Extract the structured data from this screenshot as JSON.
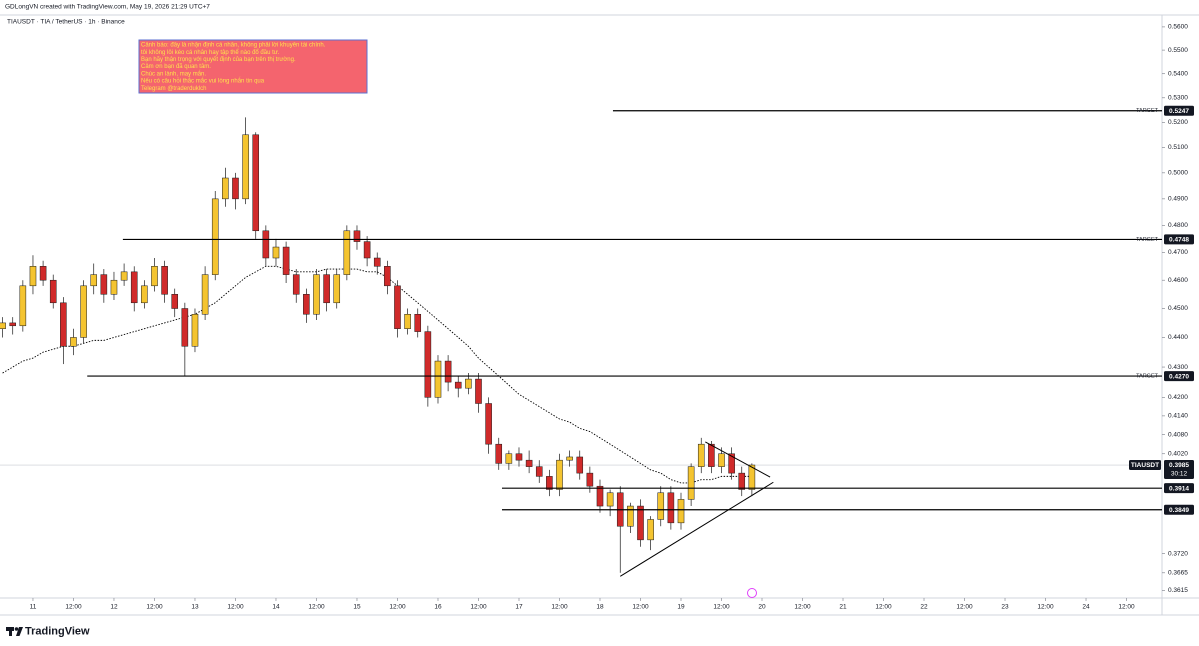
{
  "header": {
    "credit": "GDLongVN created with TradingView.com, May 19, 2026 21:29 UTC+7"
  },
  "footer": {
    "brand": "TradingView"
  },
  "chart_data": {
    "type": "candlestick",
    "title": "TIAUSDT · TIA / TetherUS · 1h · Binance",
    "annotation": [
      "Cảnh báo: đây là nhận định cá nhân, không phải lời khuyên tài chính.",
      "tôi không lôi kéo cá nhân hay tập thể nào đổ đầu tư.",
      "Bạn hãy thận trọng với quyết định của bạn trên thị trường.",
      "Cảm ơn bạn đã quan tâm.",
      "Chúc an lành, may mắn.",
      "Nếu có câu hỏi thắc mắc vui lòng nhắn tin qua",
      "Telegram @traderduklch"
    ],
    "log_scale": true,
    "up_color": "#f4c430",
    "down_color": "#d02a2a",
    "ma_color": "#000000",
    "level_color": "#000000",
    "xlim": [
      10.593,
      24.938
    ],
    "ylim": [
      0.3594,
      0.5652
    ],
    "xticks": [
      {
        "value": 11,
        "label": "11"
      },
      {
        "value": 11.5,
        "label": "12:00"
      },
      {
        "value": 12,
        "label": "12"
      },
      {
        "value": 12.5,
        "label": "12:00"
      },
      {
        "value": 13,
        "label": "13"
      },
      {
        "value": 13.5,
        "label": "12:00"
      },
      {
        "value": 14,
        "label": "14"
      },
      {
        "value": 14.5,
        "label": "12:00"
      },
      {
        "value": 15,
        "label": "15"
      },
      {
        "value": 15.5,
        "label": "12:00"
      },
      {
        "value": 16,
        "label": "16"
      },
      {
        "value": 16.5,
        "label": "12:00"
      },
      {
        "value": 17,
        "label": "17"
      },
      {
        "value": 17.5,
        "label": "12:00"
      },
      {
        "value": 18,
        "label": "18"
      },
      {
        "value": 18.5,
        "label": "12:00"
      },
      {
        "value": 19,
        "label": "19"
      },
      {
        "value": 19.5,
        "label": "12:00"
      },
      {
        "value": 20,
        "label": "20"
      },
      {
        "value": 20.5,
        "label": "12:00"
      },
      {
        "value": 21,
        "label": "21"
      },
      {
        "value": 21.5,
        "label": "12:00"
      },
      {
        "value": 22,
        "label": "22"
      },
      {
        "value": 22.5,
        "label": "12:00"
      },
      {
        "value": 23,
        "label": "23"
      },
      {
        "value": 23.5,
        "label": "12:00"
      },
      {
        "value": 24,
        "label": "24"
      },
      {
        "value": 24.5,
        "label": "12:00"
      }
    ],
    "yticks": [
      {
        "value": 0.56,
        "label": "0.5600"
      },
      {
        "value": 0.55,
        "label": "0.5500"
      },
      {
        "value": 0.54,
        "label": "0.5400"
      },
      {
        "value": 0.53,
        "label": "0.5300"
      },
      {
        "value": 0.52,
        "label": "0.5200"
      },
      {
        "value": 0.51,
        "label": "0.5100"
      },
      {
        "value": 0.5,
        "label": "0.5000"
      },
      {
        "value": 0.49,
        "label": "0.4900"
      },
      {
        "value": 0.48,
        "label": "0.4800"
      },
      {
        "value": 0.47,
        "label": "0.4700"
      },
      {
        "value": 0.46,
        "label": "0.4600"
      },
      {
        "value": 0.45,
        "label": "0.4500"
      },
      {
        "value": 0.44,
        "label": "0.4400"
      },
      {
        "value": 0.43,
        "label": "0.4300"
      },
      {
        "value": 0.42,
        "label": "0.4200"
      },
      {
        "value": 0.414,
        "label": "0.4140"
      },
      {
        "value": 0.408,
        "label": "0.4080"
      },
      {
        "value": 0.402,
        "label": "0.4020"
      },
      {
        "value": 0.372,
        "label": "0.3720"
      },
      {
        "value": 0.3665,
        "label": "0.3665"
      },
      {
        "value": 0.3615,
        "label": "0.3615"
      }
    ],
    "candles": {
      "x": [
        10.625,
        10.75,
        10.875,
        11,
        11.125,
        11.25,
        11.375,
        11.5,
        11.625,
        11.75,
        11.875,
        12,
        12.125,
        12.25,
        12.375,
        12.5,
        12.625,
        12.75,
        12.875,
        13,
        13.125,
        13.25,
        13.375,
        13.5,
        13.625,
        13.75,
        13.875,
        14,
        14.125,
        14.25,
        14.375,
        14.5,
        14.625,
        14.75,
        14.875,
        15,
        15.125,
        15.25,
        15.375,
        15.5,
        15.625,
        15.75,
        15.875,
        16,
        16.125,
        16.25,
        16.375,
        16.5,
        16.625,
        16.75,
        16.875,
        17,
        17.125,
        17.25,
        17.375,
        17.5,
        17.625,
        17.75,
        17.875,
        18,
        18.125,
        18.25,
        18.375,
        18.5,
        18.625,
        18.75,
        18.875,
        19,
        19.125,
        19.25,
        19.375,
        19.5,
        19.625,
        19.75,
        19.875
      ],
      "open": [
        0.443,
        0.445,
        0.444,
        0.458,
        0.465,
        0.46,
        0.452,
        0.437,
        0.44,
        0.458,
        0.462,
        0.455,
        0.46,
        0.463,
        0.452,
        0.458,
        0.465,
        0.455,
        0.45,
        0.437,
        0.448,
        0.462,
        0.49,
        0.498,
        0.49,
        0.515,
        0.478,
        0.468,
        0.472,
        0.462,
        0.455,
        0.448,
        0.462,
        0.452,
        0.462,
        0.478,
        0.474,
        0.468,
        0.465,
        0.458,
        0.443,
        0.448,
        0.442,
        0.42,
        0.432,
        0.425,
        0.423,
        0.426,
        0.418,
        0.405,
        0.399,
        0.402,
        0.4,
        0.398,
        0.395,
        0.391,
        0.4,
        0.401,
        0.396,
        0.392,
        0.386,
        0.39,
        0.38,
        0.386,
        0.376,
        0.382,
        0.39,
        0.381,
        0.388,
        0.398,
        0.405,
        0.398,
        0.402,
        0.396,
        0.391
      ],
      "high": [
        0.447,
        0.447,
        0.46,
        0.469,
        0.467,
        0.462,
        0.454,
        0.443,
        0.46,
        0.466,
        0.464,
        0.463,
        0.466,
        0.465,
        0.46,
        0.468,
        0.467,
        0.457,
        0.452,
        0.45,
        0.465,
        0.493,
        0.502,
        0.5,
        0.522,
        0.516,
        0.48,
        0.475,
        0.474,
        0.464,
        0.457,
        0.464,
        0.464,
        0.464,
        0.48,
        0.48,
        0.476,
        0.47,
        0.467,
        0.46,
        0.45,
        0.45,
        0.444,
        0.434,
        0.434,
        0.427,
        0.428,
        0.428,
        0.42,
        0.407,
        0.403,
        0.404,
        0.403,
        0.4,
        0.397,
        0.402,
        0.403,
        0.403,
        0.398,
        0.394,
        0.391,
        0.392,
        0.387,
        0.388,
        0.383,
        0.392,
        0.392,
        0.39,
        0.399,
        0.407,
        0.406,
        0.404,
        0.404,
        0.398,
        0.399
      ],
      "low": [
        0.44,
        0.441,
        0.442,
        0.455,
        0.458,
        0.45,
        0.431,
        0.434,
        0.438,
        0.455,
        0.452,
        0.453,
        0.458,
        0.449,
        0.45,
        0.456,
        0.452,
        0.447,
        0.427,
        0.435,
        0.446,
        0.46,
        0.487,
        0.486,
        0.488,
        0.475,
        0.465,
        0.465,
        0.459,
        0.452,
        0.445,
        0.446,
        0.449,
        0.45,
        0.46,
        0.471,
        0.465,
        0.462,
        0.455,
        0.44,
        0.441,
        0.44,
        0.417,
        0.418,
        0.422,
        0.42,
        0.421,
        0.415,
        0.402,
        0.397,
        0.397,
        0.398,
        0.396,
        0.393,
        0.389,
        0.389,
        0.398,
        0.394,
        0.39,
        0.384,
        0.383,
        0.3665,
        0.378,
        0.374,
        0.373,
        0.38,
        0.379,
        0.379,
        0.386,
        0.396,
        0.396,
        0.396,
        0.394,
        0.389,
        0.389
      ],
      "close": [
        0.445,
        0.444,
        0.458,
        0.465,
        0.46,
        0.452,
        0.437,
        0.44,
        0.458,
        0.462,
        0.455,
        0.46,
        0.463,
        0.452,
        0.458,
        0.465,
        0.455,
        0.45,
        0.437,
        0.448,
        0.462,
        0.49,
        0.498,
        0.49,
        0.515,
        0.478,
        0.468,
        0.472,
        0.462,
        0.455,
        0.448,
        0.462,
        0.452,
        0.462,
        0.478,
        0.474,
        0.468,
        0.465,
        0.458,
        0.443,
        0.448,
        0.442,
        0.42,
        0.432,
        0.425,
        0.423,
        0.426,
        0.418,
        0.405,
        0.399,
        0.402,
        0.4,
        0.398,
        0.395,
        0.391,
        0.4,
        0.401,
        0.396,
        0.392,
        0.386,
        0.39,
        0.38,
        0.386,
        0.376,
        0.382,
        0.39,
        0.381,
        0.388,
        0.398,
        0.405,
        0.398,
        0.402,
        0.396,
        0.391,
        0.3985
      ]
    },
    "ma": {
      "values": [
        0.428,
        0.43,
        0.432,
        0.433,
        0.435,
        0.436,
        0.437,
        0.437,
        0.438,
        0.439,
        0.439,
        0.44,
        0.441,
        0.442,
        0.443,
        0.444,
        0.445,
        0.446,
        0.447,
        0.448,
        0.45,
        0.452,
        0.455,
        0.458,
        0.461,
        0.463,
        0.465,
        0.465,
        0.464,
        0.463,
        0.463,
        0.463,
        0.464,
        0.464,
        0.464,
        0.464,
        0.463,
        0.463,
        0.461,
        0.458,
        0.455,
        0.452,
        0.449,
        0.446,
        0.443,
        0.44,
        0.437,
        0.433,
        0.43,
        0.427,
        0.424,
        0.421,
        0.419,
        0.417,
        0.415,
        0.413,
        0.412,
        0.41,
        0.409,
        0.407,
        0.405,
        0.403,
        0.401,
        0.399,
        0.397,
        0.396,
        0.394,
        0.393,
        0.393,
        0.394,
        0.394,
        0.395,
        0.395,
        0.395,
        0.395
      ]
    },
    "levels": [
      {
        "price": {
          "value": 0.5247,
          "label": "0.5247"
        },
        "from": 18.16,
        "note": "TARGET"
      },
      {
        "price": {
          "value": 0.4748,
          "label": "0.4748"
        },
        "from": 12.11,
        "note": "TARGET"
      },
      {
        "price": {
          "value": 0.427,
          "label": "0.4270"
        },
        "from": 11.67,
        "note": "TARGET"
      },
      {
        "price": {
          "value": 0.3914,
          "label": "0.3914"
        },
        "from": 16.79
      },
      {
        "price": {
          "value": 0.3849,
          "label": "0.3849"
        },
        "from": 16.79
      }
    ],
    "trendlines": [
      {
        "x": [
          19.3,
          20.1
        ],
        "y": [
          0.4057,
          0.3948
        ]
      },
      {
        "x": [
          18.25,
          20.14
        ],
        "y": [
          0.3655,
          0.3932
        ]
      }
    ],
    "last": {
      "symbol": "TIAUSDT",
      "price": {
        "value": 0.3985,
        "label": "0.3985"
      },
      "countdown": "30:12"
    }
  }
}
